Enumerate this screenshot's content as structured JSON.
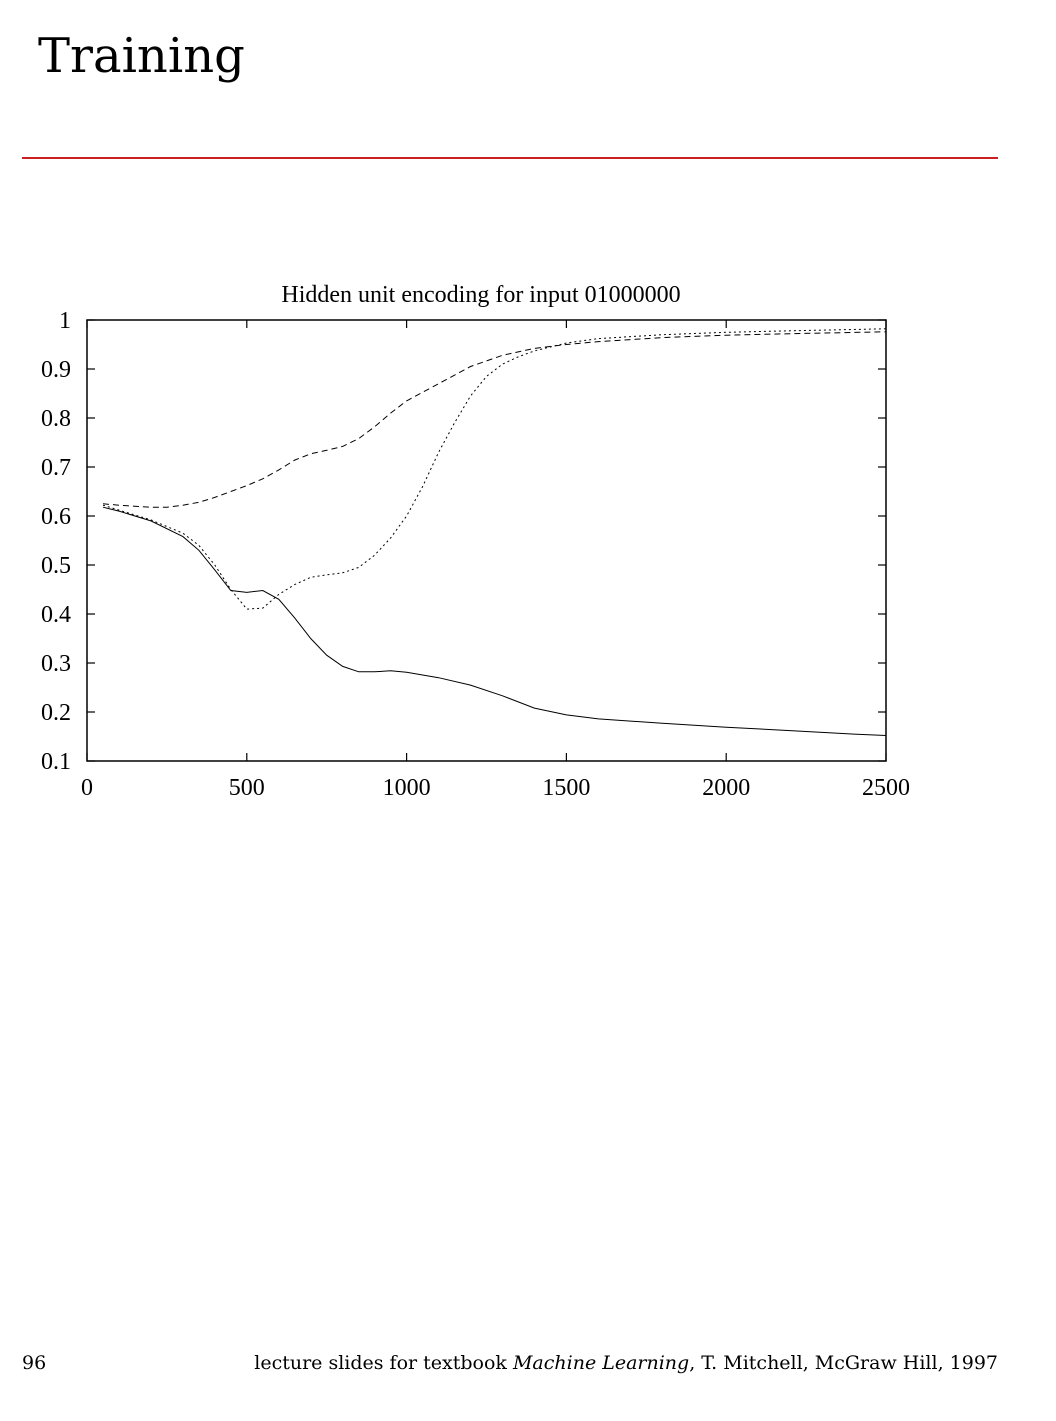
{
  "slide": {
    "title": "Training"
  },
  "footer": {
    "page_number": "96",
    "credit_prefix": "lecture slides for textbook ",
    "credit_book": "Machine Learning",
    "credit_suffix": ", T. Mitchell, McGraw Hill, 1997"
  },
  "colors": {
    "rule": "#cc1f1f",
    "lines": "#000000"
  },
  "chart_data": {
    "type": "line",
    "title": "Hidden unit encoding for input 01000000",
    "xlabel": "",
    "ylabel": "",
    "xlim": [
      0,
      2500
    ],
    "ylim": [
      0.1,
      1
    ],
    "xticks": [
      "0",
      "500",
      "1000",
      "1500",
      "2000",
      "2500"
    ],
    "yticks": [
      "0.1",
      "0.2",
      "0.3",
      "0.4",
      "0.5",
      "0.6",
      "0.7",
      "0.8",
      "0.9",
      "1"
    ],
    "grid": false,
    "legend": "none",
    "series": [
      {
        "style": "solid",
        "x": [
          50,
          100,
          200,
          300,
          350,
          400,
          450,
          500,
          550,
          600,
          650,
          700,
          750,
          800,
          850,
          900,
          950,
          1000,
          1100,
          1200,
          1300,
          1400,
          1500,
          1600,
          1800,
          2000,
          2200,
          2400,
          2500
        ],
        "y": [
          0.618,
          0.61,
          0.59,
          0.558,
          0.53,
          0.49,
          0.448,
          0.444,
          0.448,
          0.43,
          0.392,
          0.35,
          0.316,
          0.293,
          0.282,
          0.282,
          0.284,
          0.281,
          0.27,
          0.255,
          0.233,
          0.208,
          0.194,
          0.186,
          0.177,
          0.169,
          0.162,
          0.155,
          0.152
        ]
      },
      {
        "style": "dotted",
        "x": [
          50,
          100,
          200,
          300,
          350,
          400,
          450,
          500,
          550,
          600,
          650,
          700,
          750,
          800,
          850,
          900,
          950,
          1000,
          1050,
          1100,
          1150,
          1200,
          1250,
          1300,
          1350,
          1400,
          1500,
          1600,
          1800,
          2000,
          2200,
          2500
        ],
        "y": [
          0.622,
          0.612,
          0.592,
          0.565,
          0.54,
          0.5,
          0.45,
          0.41,
          0.412,
          0.44,
          0.46,
          0.475,
          0.48,
          0.484,
          0.495,
          0.52,
          0.555,
          0.6,
          0.66,
          0.73,
          0.79,
          0.845,
          0.885,
          0.91,
          0.925,
          0.937,
          0.953,
          0.962,
          0.97,
          0.975,
          0.978,
          0.982
        ]
      },
      {
        "style": "dashed",
        "x": [
          50,
          100,
          200,
          250,
          300,
          350,
          400,
          450,
          500,
          550,
          600,
          650,
          700,
          750,
          800,
          850,
          900,
          950,
          1000,
          1100,
          1200,
          1300,
          1400,
          1500,
          1600,
          1800,
          2000,
          2200,
          2500
        ],
        "y": [
          0.625,
          0.622,
          0.618,
          0.618,
          0.622,
          0.628,
          0.638,
          0.65,
          0.662,
          0.676,
          0.694,
          0.714,
          0.727,
          0.734,
          0.742,
          0.758,
          0.782,
          0.81,
          0.835,
          0.87,
          0.905,
          0.928,
          0.942,
          0.95,
          0.956,
          0.964,
          0.969,
          0.972,
          0.976
        ]
      }
    ]
  }
}
